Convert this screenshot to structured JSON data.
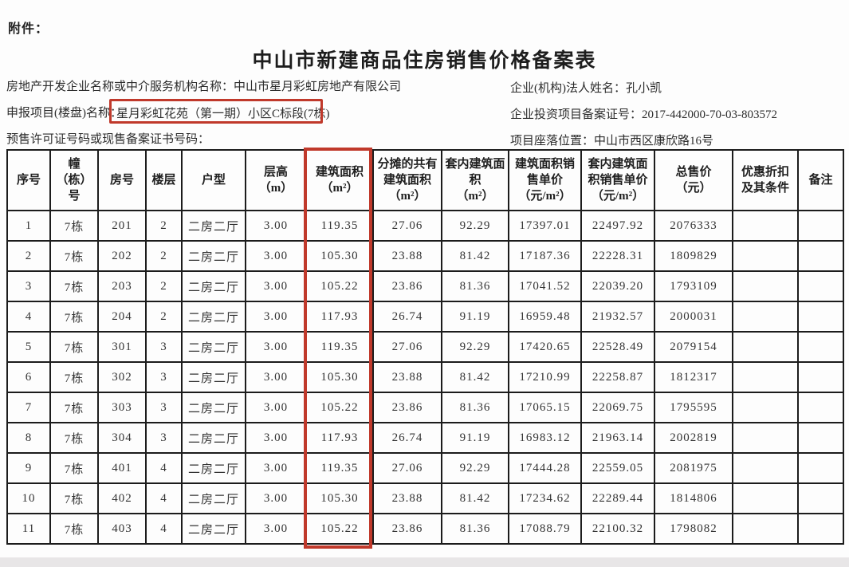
{
  "page": {
    "attachment_label": "附件：",
    "title": "中山市新建商品住房销售价格备案表",
    "annotation_color": "#c0392b"
  },
  "info": {
    "developer_label": "房地产开发企业名称或中介服务机构名称：",
    "developer_value": "中山市星月彩虹房地产有限公司",
    "legal_person_label": "企业(机构)法人姓名：",
    "legal_person_value": "孔小凯",
    "project_label": "申报项目(楼盘)名称：",
    "project_value": "星月彩虹花苑（第一期）小区C标段(7栋)",
    "invest_cert_label": "企业投资项目备案证号：",
    "invest_cert_value": "2017-442000-70-03-803572",
    "presale_label": "预售许可证号码或现售备案证书号码：",
    "location_label": "项目座落位置：",
    "location_value": "中山市西区康欣路16号"
  },
  "table": {
    "headers": [
      "序号",
      "幢\n（栋）\n号",
      "房号",
      "楼层",
      "户型",
      "层高\n（m）",
      "建筑面积\n（m²）",
      "分摊的共有\n建筑面积\n（m²）",
      "套内建筑面\n积\n（m²）",
      "建筑面积销\n售单价\n（元/m²）",
      "套内建筑面\n积销售单价\n（元/m²）",
      "总售价\n（元）",
      "优惠折扣\n及其条件",
      "备注"
    ],
    "rows": [
      [
        "1",
        "7栋",
        "201",
        "2",
        "二房二厅",
        "3.00",
        "119.35",
        "27.06",
        "92.29",
        "17397.01",
        "22497.92",
        "2076333",
        "",
        ""
      ],
      [
        "2",
        "7栋",
        "202",
        "2",
        "二房二厅",
        "3.00",
        "105.30",
        "23.88",
        "81.42",
        "17187.36",
        "22228.31",
        "1809829",
        "",
        ""
      ],
      [
        "3",
        "7栋",
        "203",
        "2",
        "二房二厅",
        "3.00",
        "105.22",
        "23.86",
        "81.36",
        "17041.52",
        "22039.20",
        "1793109",
        "",
        ""
      ],
      [
        "4",
        "7栋",
        "204",
        "2",
        "二房二厅",
        "3.00",
        "117.93",
        "26.74",
        "91.19",
        "16959.48",
        "21932.57",
        "2000031",
        "",
        ""
      ],
      [
        "5",
        "7栋",
        "301",
        "3",
        "二房二厅",
        "3.00",
        "119.35",
        "27.06",
        "92.29",
        "17420.65",
        "22528.49",
        "2079154",
        "",
        ""
      ],
      [
        "6",
        "7栋",
        "302",
        "3",
        "二房二厅",
        "3.00",
        "105.30",
        "23.88",
        "81.42",
        "17210.99",
        "22258.87",
        "1812317",
        "",
        ""
      ],
      [
        "7",
        "7栋",
        "303",
        "3",
        "二房二厅",
        "3.00",
        "105.22",
        "23.86",
        "81.36",
        "17065.15",
        "22069.75",
        "1795595",
        "",
        ""
      ],
      [
        "8",
        "7栋",
        "304",
        "3",
        "二房二厅",
        "3.00",
        "117.93",
        "26.74",
        "91.19",
        "16983.12",
        "21963.14",
        "2002819",
        "",
        ""
      ],
      [
        "9",
        "7栋",
        "401",
        "4",
        "二房二厅",
        "3.00",
        "119.35",
        "27.06",
        "92.29",
        "17444.28",
        "22559.05",
        "2081975",
        "",
        ""
      ],
      [
        "10",
        "7栋",
        "402",
        "4",
        "二房二厅",
        "3.00",
        "105.30",
        "23.88",
        "81.42",
        "17234.62",
        "22289.44",
        "1814806",
        "",
        ""
      ],
      [
        "11",
        "7栋",
        "403",
        "4",
        "二房二厅",
        "3.00",
        "105.22",
        "23.86",
        "81.36",
        "17088.79",
        "22100.32",
        "1798082",
        "",
        ""
      ]
    ]
  }
}
